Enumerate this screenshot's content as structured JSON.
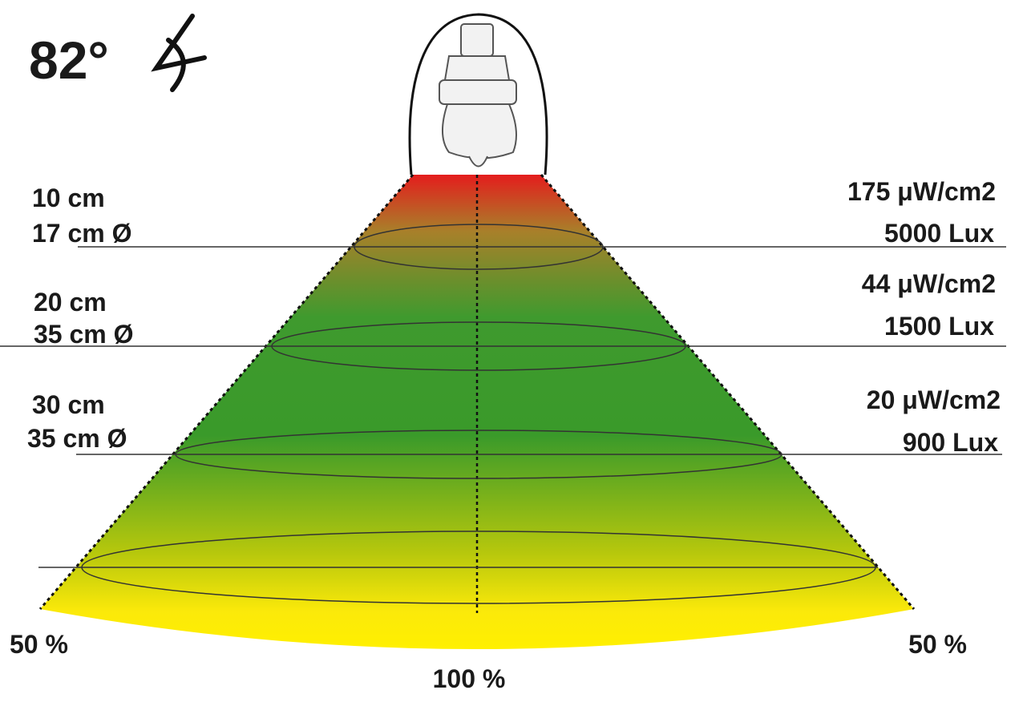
{
  "angle": "82°",
  "levels": [
    {
      "distance": "10 cm",
      "diameter": "17 cm Ø",
      "uv": "175 μW/cm2",
      "lux": "5000 Lux"
    },
    {
      "distance": "20 cm",
      "diameter": "35 cm Ø",
      "uv": "44 μW/cm2",
      "lux": "1500 Lux"
    },
    {
      "distance": "30 cm",
      "diameter": "35 cm Ø",
      "uv": "20 μW/cm2",
      "lux": "900 Lux"
    }
  ],
  "edge_labels": {
    "left": "50 %",
    "center": "100 %",
    "right": "50 %"
  }
}
